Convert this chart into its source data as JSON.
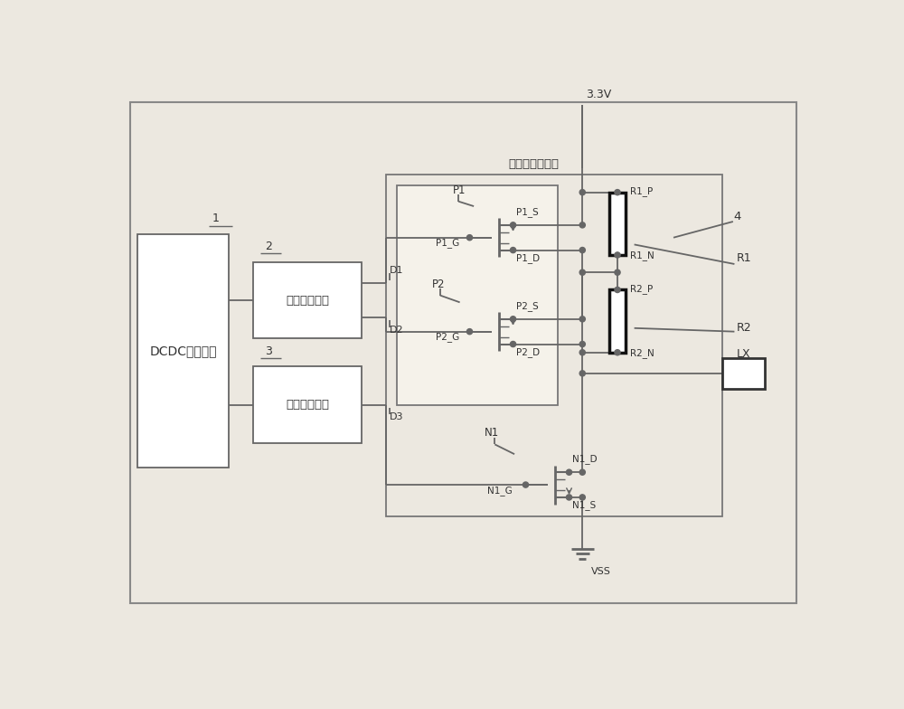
{
  "bg_color": "#ece8e0",
  "line_color": "#666666",
  "fig_w": 10.0,
  "fig_h": 7.84,
  "dcdc_label": "DCDC控制电路",
  "delay_label": "延时驱动电路",
  "buck_label": "降压驱动电路",
  "power_label": "功率管串联电路"
}
